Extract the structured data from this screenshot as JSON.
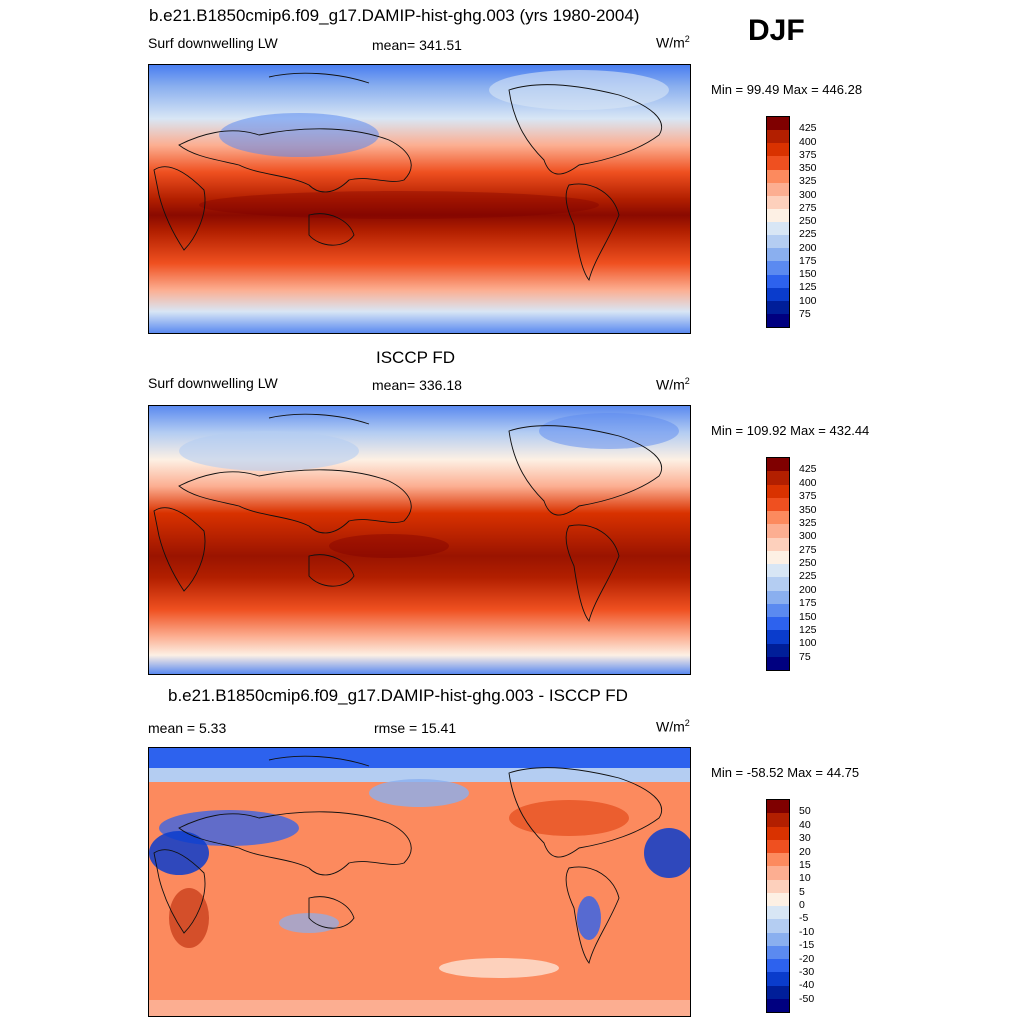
{
  "season": "DJF",
  "panels": [
    {
      "id": "model",
      "title": "b.e21.B1850cmip6.f09_g17.DAMIP-hist-ghg.003 (yrs 1980-2004)",
      "left_label": "Surf downwelling LW",
      "center_label": "mean= 341.51",
      "units": "W/m",
      "units_sup": "2",
      "minmax": "Min =  99.49 Max = 446.28",
      "colorbar_levels": [
        "425",
        "400",
        "375",
        "350",
        "325",
        "300",
        "275",
        "250",
        "225",
        "200",
        "175",
        "150",
        "125",
        "100",
        "75"
      ]
    },
    {
      "id": "obs",
      "title": "ISCCP FD",
      "left_label": "Surf downwelling LW",
      "center_label": "mean= 336.18",
      "units": "W/m",
      "units_sup": "2",
      "minmax": "Min = 109.92 Max = 432.44",
      "colorbar_levels": [
        "425",
        "400",
        "375",
        "350",
        "325",
        "300",
        "275",
        "250",
        "225",
        "200",
        "175",
        "150",
        "125",
        "100",
        "75"
      ]
    },
    {
      "id": "diff",
      "title": "b.e21.B1850cmip6.f09_g17.DAMIP-hist-ghg.003 - ISCCP FD",
      "left_label": "mean =   5.33",
      "center_label": "rmse =  15.41",
      "units": "W/m",
      "units_sup": "2",
      "minmax": "Min = -58.52 Max =  44.75",
      "colorbar_levels": [
        "50",
        "40",
        "30",
        "20",
        "15",
        "10",
        "5",
        "0",
        "-5",
        "-10",
        "-15",
        "-20",
        "-30",
        "-40",
        "-50"
      ]
    }
  ],
  "colors": {
    "seq": [
      "#7f0000",
      "#b21f00",
      "#d93200",
      "#ef5020",
      "#fc8a5e",
      "#fcae91",
      "#fdd0bc",
      "#fdf0e4",
      "#d8e6f5",
      "#b4cdf2",
      "#8aafef",
      "#5b8af0",
      "#2d62ee",
      "#0a3ccc",
      "#001e99",
      "#000080"
    ]
  }
}
